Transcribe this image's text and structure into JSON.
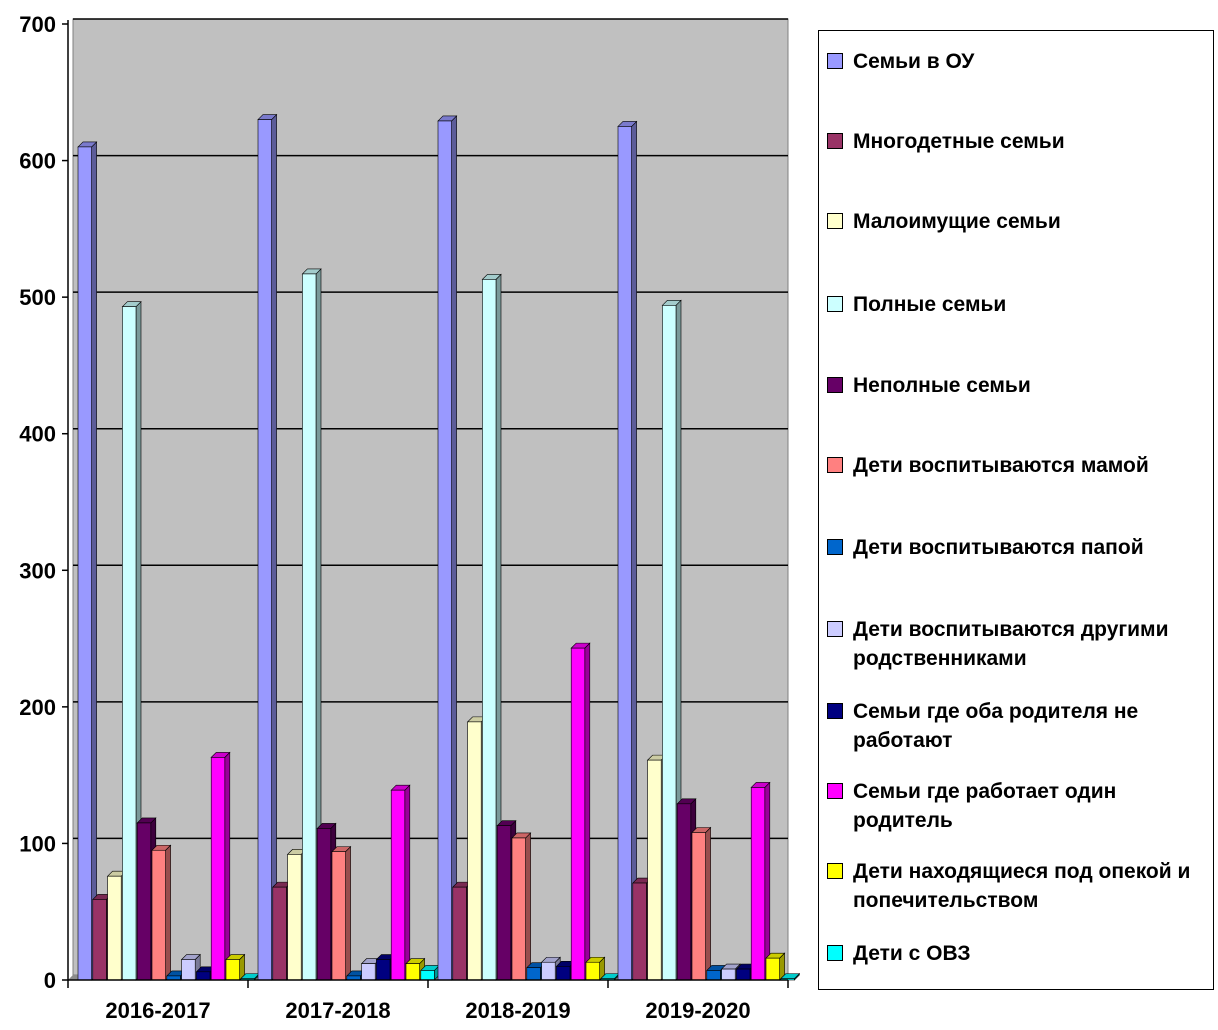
{
  "chart_data": {
    "type": "bar",
    "categories": [
      "2016-2017",
      "2017-2018",
      "2018-2019",
      "2019-2020"
    ],
    "ylim": [
      0,
      700
    ],
    "yticks": [
      0,
      100,
      200,
      300,
      400,
      500,
      600,
      700
    ],
    "grid": true,
    "legend_position": "right",
    "series": [
      {
        "name": "Семьи в ОУ",
        "color": "#9999ff",
        "values": [
          610,
          630,
          629,
          625
        ]
      },
      {
        "name": "Многодетные  семьи",
        "color": "#993366",
        "values": [
          59,
          68,
          68,
          71
        ]
      },
      {
        "name": "Малоимущие семьи",
        "color": "#ffffcc",
        "values": [
          76,
          92,
          189,
          161
        ]
      },
      {
        "name": "Полные семьи",
        "color": "#ccffff",
        "values": [
          493,
          517,
          513,
          494
        ]
      },
      {
        "name": "Неполные семьи",
        "color": "#660066",
        "values": [
          115,
          111,
          113,
          129
        ]
      },
      {
        "name": "Дети воспитываются мамой",
        "color": "#ff8080",
        "values": [
          95,
          94,
          104,
          108
        ]
      },
      {
        "name": "Дети воспитываются папой",
        "color": "#0066cc",
        "values": [
          3,
          3,
          9,
          7
        ]
      },
      {
        "name": "Дети воспитываются другими родственниками",
        "color": "#ccccff",
        "values": [
          15,
          12,
          13,
          8
        ]
      },
      {
        "name": "Семьи где оба родителя не работают",
        "color": "#000080",
        "values": [
          6,
          15,
          10,
          8
        ]
      },
      {
        "name": "Семьи где работает один родитель",
        "color": "#ff00ff",
        "values": [
          163,
          139,
          243,
          141
        ]
      },
      {
        "name": "Дети находящиеся под опекой и попечительством",
        "color": "#ffff00",
        "values": [
          15,
          12,
          13,
          16
        ]
      },
      {
        "name": "Дети с ОВЗ",
        "color": "#00ffff",
        "values": [
          1,
          7,
          1,
          1
        ]
      }
    ]
  },
  "legend": {
    "items": [
      "Семьи в ОУ",
      "Многодетные  семьи",
      "Малоимущие семьи",
      "Полные семьи",
      "Неполные семьи",
      "Дети воспитываются мамой",
      "Дети воспитываются папой",
      "Дети воспитываются другими родственниками",
      "Семьи где оба родителя не работают",
      "Семьи где работает один родитель",
      "Дети находящиеся под опекой и попечительством",
      "Дети с ОВЗ"
    ]
  }
}
